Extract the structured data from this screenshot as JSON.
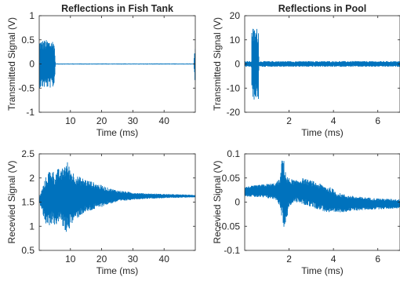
{
  "chart_data": [
    {
      "id": "tank-tx",
      "type": "line",
      "title": "Reflections in Fish Tank",
      "xlabel": "Time (ms)",
      "ylabel": "Transmitted Signal (V)",
      "xlim": [
        0,
        50
      ],
      "ylim": [
        -1,
        1
      ],
      "xticks": [
        10,
        20,
        30,
        40
      ],
      "xtick_labels": [
        "10",
        "20",
        "30",
        "40"
      ],
      "yticks": [
        -1,
        -0.5,
        0,
        0.5,
        1
      ],
      "ytick_labels": [
        "-1",
        "-0.5",
        "0",
        "0.5",
        "1"
      ],
      "grid": false,
      "line_color": "#0072bd",
      "series": [
        {
          "kind": "envelope",
          "x": [
            0,
            0.8,
            4.8,
            5.2,
            49.5,
            50
          ],
          "upper": [
            0.5,
            0.5,
            0.5,
            0.01,
            0.01,
            0.5
          ],
          "lower": [
            -0.5,
            -0.5,
            -0.5,
            -0.01,
            -0.01,
            -0.5
          ]
        }
      ]
    },
    {
      "id": "pool-tx",
      "type": "line",
      "title": "Reflections in Pool",
      "xlabel": "Time (ms)",
      "ylabel": "Transmitted Signal (V)",
      "xlim": [
        0,
        7
      ],
      "ylim": [
        -20,
        20
      ],
      "xticks": [
        2,
        4,
        6
      ],
      "xtick_labels": [
        "2",
        "4",
        "6"
      ],
      "yticks": [
        -20,
        -10,
        0,
        10,
        20
      ],
      "ytick_labels": [
        "-20",
        "-10",
        "0",
        "10",
        "20"
      ],
      "grid": false,
      "line_color": "#0072bd",
      "series": [
        {
          "kind": "envelope",
          "x": [
            0,
            0.3,
            0.32,
            0.62,
            0.64,
            7
          ],
          "upper": [
            1.2,
            1.2,
            15,
            15,
            1.2,
            1.2
          ],
          "lower": [
            -1.2,
            -1.2,
            -15,
            -15,
            -1.2,
            -1.2
          ]
        }
      ]
    },
    {
      "id": "tank-rx",
      "type": "line",
      "title": "",
      "xlabel": "Time (ms)",
      "ylabel": "Recevied Signal (V)",
      "xlim": [
        0,
        50
      ],
      "ylim": [
        0.5,
        2.5
      ],
      "xticks": [
        10,
        20,
        30,
        40
      ],
      "xtick_labels": [
        "10",
        "20",
        "30",
        "40"
      ],
      "yticks": [
        0.5,
        1,
        1.5,
        2,
        2.5
      ],
      "ytick_labels": [
        "0.5",
        "1",
        "1.5",
        "2",
        "2.5"
      ],
      "grid": false,
      "line_color": "#0072bd",
      "series": [
        {
          "kind": "envelope",
          "x": [
            0,
            1,
            2,
            3,
            4,
            5,
            6,
            7,
            8,
            9,
            10,
            12,
            14,
            16,
            18,
            20,
            22,
            25,
            28,
            30,
            35,
            40,
            45,
            50
          ],
          "upper": [
            1.6,
            1.8,
            2.0,
            2.15,
            2.2,
            2.1,
            2.2,
            2.15,
            2.3,
            2.35,
            2.2,
            2.05,
            2.0,
            1.95,
            1.9,
            1.85,
            1.8,
            1.75,
            1.72,
            1.7,
            1.68,
            1.67,
            1.66,
            1.65
          ],
          "lower": [
            1.5,
            1.3,
            1.05,
            1.0,
            1.05,
            1.0,
            1.05,
            1.1,
            0.9,
            0.85,
            1.0,
            1.15,
            1.25,
            1.3,
            1.35,
            1.4,
            1.45,
            1.5,
            1.53,
            1.55,
            1.57,
            1.58,
            1.59,
            1.6
          ]
        }
      ]
    },
    {
      "id": "pool-rx",
      "type": "line",
      "title": "",
      "xlabel": "Time (ms)",
      "ylabel": "Recevied Signal (V)",
      "xlim": [
        0,
        7
      ],
      "ylim": [
        -0.1,
        0.1
      ],
      "xticks": [
        2,
        4,
        6
      ],
      "xtick_labels": [
        "2",
        "4",
        "6"
      ],
      "yticks": [
        -0.1,
        -0.05,
        0,
        0.05,
        0.1
      ],
      "ytick_labels": [
        "-0.1",
        "-0.05",
        "0",
        "0.05",
        "0.1"
      ],
      "grid": false,
      "line_color": "#0072bd",
      "series": [
        {
          "kind": "envelope",
          "x": [
            0,
            0.5,
            1.0,
            1.4,
            1.6,
            1.7,
            1.8,
            1.9,
            2.0,
            2.3,
            2.6,
            3.0,
            3.3,
            3.6,
            3.9,
            4.2,
            4.6,
            5.0,
            5.5,
            6.0,
            6.5,
            7.0
          ],
          "upper": [
            0.032,
            0.035,
            0.038,
            0.04,
            0.05,
            0.1,
            0.08,
            0.055,
            0.05,
            0.045,
            0.05,
            0.045,
            0.04,
            0.035,
            0.03,
            0.02,
            0.015,
            0.012,
            0.01,
            0.008,
            0.007,
            0.006
          ],
          "lower": [
            0.012,
            0.01,
            0.008,
            0.005,
            -0.01,
            -0.04,
            -0.06,
            -0.035,
            -0.01,
            0.0,
            -0.005,
            -0.01,
            -0.015,
            -0.02,
            -0.025,
            -0.022,
            -0.02,
            -0.018,
            -0.016,
            -0.015,
            -0.014,
            -0.013
          ]
        }
      ]
    }
  ]
}
